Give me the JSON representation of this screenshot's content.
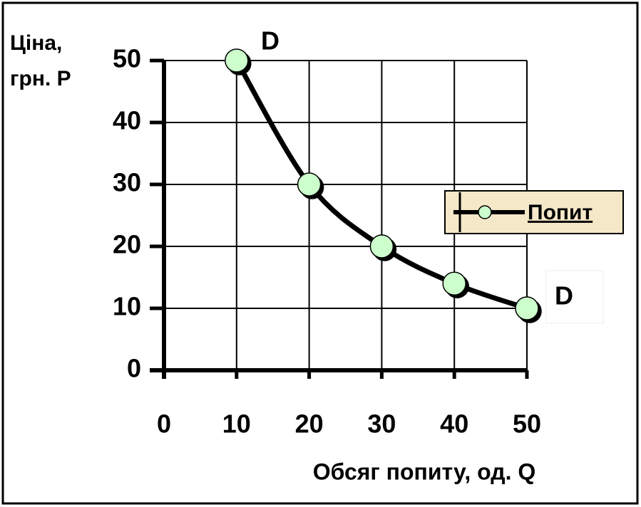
{
  "chart_data": {
    "type": "line",
    "y_label": [
      "Ціна,",
      "грн. P"
    ],
    "x_label": "Обсяг попиту, од. Q",
    "annotations": [
      "D",
      "D"
    ],
    "series": [
      {
        "name": "Попит",
        "color": "#000000",
        "marker_color": "#ccffcc",
        "x": [
          10,
          20,
          30,
          40,
          50
        ],
        "values": [
          50,
          30,
          20,
          14,
          10
        ]
      }
    ],
    "xlim": [
      0,
      50
    ],
    "xticks": [
      0,
      10,
      20,
      30,
      40,
      50
    ],
    "ylim": [
      0,
      50
    ],
    "yticks": [
      0,
      10,
      20,
      30,
      40,
      50
    ],
    "grid": true,
    "legend": "right"
  }
}
